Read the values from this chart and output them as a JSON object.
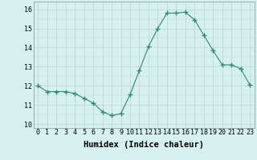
{
  "x": [
    0,
    1,
    2,
    3,
    4,
    5,
    6,
    7,
    8,
    9,
    10,
    11,
    12,
    13,
    14,
    15,
    16,
    17,
    18,
    19,
    20,
    21,
    22,
    23
  ],
  "y": [
    12.0,
    11.7,
    11.7,
    11.7,
    11.6,
    11.35,
    11.1,
    10.65,
    10.45,
    10.55,
    11.55,
    12.8,
    14.05,
    15.0,
    15.8,
    15.8,
    15.85,
    15.45,
    14.65,
    13.85,
    13.1,
    13.1,
    12.9,
    12.05
  ],
  "line_color": "#2e8b74",
  "marker": "+",
  "marker_size": 4,
  "bg_color": "#d6f0f0",
  "grid_color": "#b8d4d4",
  "xlabel": "Humidex (Indice chaleur)",
  "ylim": [
    9.8,
    16.4
  ],
  "xlim": [
    -0.5,
    23.5
  ],
  "yticks": [
    10,
    11,
    12,
    13,
    14,
    15,
    16
  ],
  "xticks": [
    0,
    1,
    2,
    3,
    4,
    5,
    6,
    7,
    8,
    9,
    10,
    11,
    12,
    13,
    14,
    15,
    16,
    17,
    18,
    19,
    20,
    21,
    22,
    23
  ],
  "font_size": 6.0,
  "xlabel_fontsize": 7.5
}
